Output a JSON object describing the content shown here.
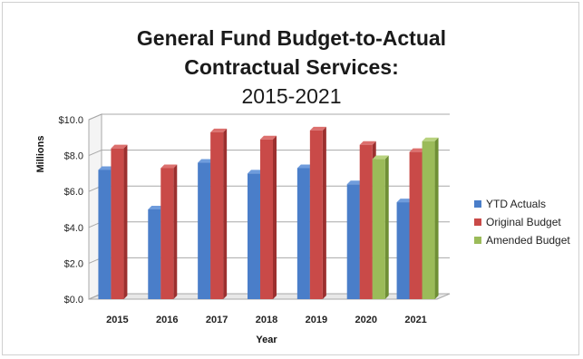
{
  "chart_data": {
    "type": "bar",
    "title_line1": "General Fund Budget-to-Actual",
    "title_line2": "Contractual Services:",
    "subtitle": "2015-2021",
    "xlabel": "Year",
    "ylabel": "Millions",
    "categories": [
      "2015",
      "2016",
      "2017",
      "2018",
      "2019",
      "2020",
      "2021"
    ],
    "ylim": [
      0,
      10
    ],
    "yticks": [
      "$0.0",
      "$2.0",
      "$4.0",
      "$6.0",
      "$8.0",
      "$10.0"
    ],
    "ytick_values": [
      0,
      2,
      4,
      6,
      8,
      10
    ],
    "grid": true,
    "legend_position": "right",
    "series": [
      {
        "name": "YTD Actuals",
        "color": "#4a7ec9",
        "side": "#2f5d9e",
        "top": "#6f9cdc",
        "values": [
          7.2,
          5.0,
          7.6,
          7.0,
          7.3,
          6.4,
          5.4
        ]
      },
      {
        "name": "Original Budget",
        "color": "#c94a48",
        "side": "#9c302f",
        "top": "#dc706e",
        "values": [
          8.4,
          7.3,
          9.3,
          8.9,
          9.4,
          8.6,
          8.2
        ]
      },
      {
        "name": "Amended Budget",
        "color": "#9bbb59",
        "side": "#6f8f35",
        "top": "#b8d27e",
        "values": [
          null,
          null,
          null,
          null,
          null,
          7.8,
          8.8
        ]
      }
    ]
  }
}
